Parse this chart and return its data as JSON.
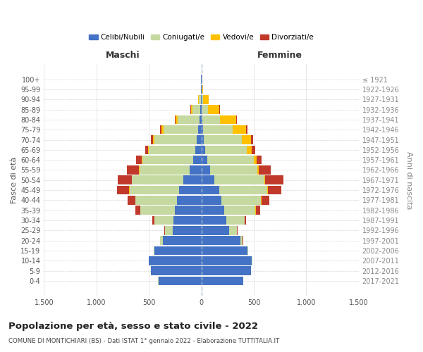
{
  "age_groups": [
    "100+",
    "95-99",
    "90-94",
    "85-89",
    "80-84",
    "75-79",
    "70-74",
    "65-69",
    "60-64",
    "55-59",
    "50-54",
    "45-49",
    "40-44",
    "35-39",
    "30-34",
    "25-29",
    "20-24",
    "15-19",
    "10-14",
    "5-9",
    "0-4"
  ],
  "birth_years": [
    "≤ 1921",
    "1922-1926",
    "1927-1931",
    "1932-1936",
    "1937-1941",
    "1942-1946",
    "1947-1951",
    "1952-1956",
    "1957-1961",
    "1962-1966",
    "1967-1971",
    "1972-1976",
    "1977-1981",
    "1982-1986",
    "1987-1991",
    "1992-1996",
    "1997-2001",
    "2002-2006",
    "2007-2011",
    "2012-2016",
    "2017-2021"
  ],
  "males": {
    "celibi": [
      2,
      2,
      3,
      8,
      15,
      30,
      45,
      55,
      75,
      110,
      170,
      210,
      230,
      250,
      265,
      270,
      370,
      450,
      500,
      480,
      410
    ],
    "coniugati": [
      1,
      3,
      20,
      80,
      210,
      330,
      400,
      445,
      490,
      480,
      490,
      475,
      400,
      330,
      185,
      80,
      25,
      4,
      4,
      2,
      1
    ],
    "vedovi": [
      0,
      1,
      5,
      10,
      20,
      18,
      14,
      10,
      5,
      5,
      3,
      2,
      2,
      1,
      0,
      0,
      0,
      0,
      0,
      0,
      0
    ],
    "divorziati": [
      0,
      0,
      1,
      4,
      10,
      14,
      22,
      28,
      52,
      115,
      135,
      115,
      70,
      45,
      18,
      5,
      2,
      0,
      0,
      0,
      0
    ]
  },
  "females": {
    "nubili": [
      1,
      1,
      3,
      6,
      12,
      18,
      25,
      35,
      55,
      80,
      125,
      170,
      190,
      215,
      240,
      265,
      370,
      440,
      480,
      470,
      400
    ],
    "coniugate": [
      1,
      3,
      15,
      60,
      165,
      280,
      360,
      400,
      445,
      455,
      475,
      460,
      380,
      300,
      170,
      75,
      25,
      4,
      4,
      2,
      1
    ],
    "vedove": [
      2,
      14,
      50,
      105,
      155,
      125,
      85,
      48,
      24,
      14,
      9,
      5,
      3,
      2,
      1,
      0,
      0,
      0,
      0,
      0,
      0
    ],
    "divorziate": [
      0,
      0,
      2,
      5,
      9,
      18,
      22,
      32,
      52,
      115,
      175,
      125,
      75,
      45,
      18,
      5,
      2,
      0,
      0,
      0,
      0
    ]
  },
  "color_celibi": "#4472c4",
  "color_coniugati": "#c5d9a0",
  "color_vedovi": "#ffc000",
  "color_divorziati": "#c0392b",
  "title": "Popolazione per età, sesso e stato civile - 2022",
  "subtitle": "COMUNE DI MONTICHIARI (BS) - Dati ISTAT 1° gennaio 2022 - Elaborazione TUTTITALIA.IT",
  "xlabel_left": "Maschi",
  "xlabel_right": "Femmine",
  "ylabel_left": "Fasce di età",
  "ylabel_right": "Anni di nascita",
  "xlim": 1500,
  "bg_color": "#ffffff",
  "grid_color": "#cccccc"
}
